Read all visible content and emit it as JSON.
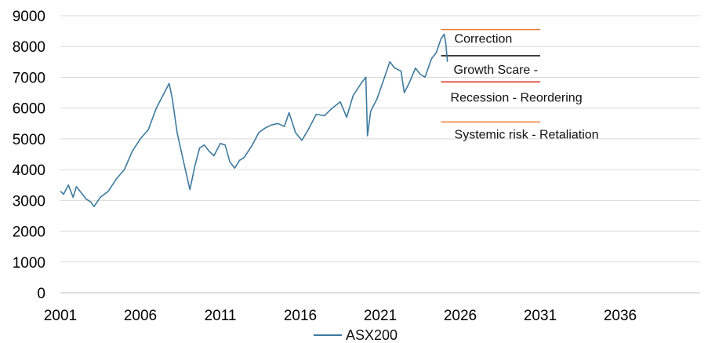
{
  "chart_data": {
    "type": "line",
    "title": "",
    "xlabel": "",
    "ylabel": "",
    "xlim": [
      2001,
      2041
    ],
    "ylim": [
      0,
      9000
    ],
    "x_ticks": [
      "2001",
      "2006",
      "2011",
      "2016",
      "2021",
      "2026",
      "2031",
      "2036"
    ],
    "y_ticks": [
      "0",
      "1000",
      "2000",
      "3000",
      "4000",
      "5000",
      "6000",
      "7000",
      "8000",
      "9000"
    ],
    "grid": "horizontal",
    "legend": "bottom",
    "colors": {
      "series": "#3d7a9e",
      "orange": "#ed7d31",
      "red": "#e0251b",
      "black": "#000000",
      "grid": "#d9d9d9"
    },
    "series": [
      {
        "name": "ASX200",
        "x": [
          2001.0,
          2001.2,
          2001.5,
          2001.8,
          2002.0,
          2002.3,
          2002.6,
          2002.9,
          2003.1,
          2003.5,
          2004.0,
          2004.5,
          2005.0,
          2005.5,
          2006.0,
          2006.5,
          2007.0,
          2007.5,
          2007.8,
          2008.0,
          2008.3,
          2008.6,
          2008.9,
          2009.1,
          2009.4,
          2009.7,
          2010.0,
          2010.3,
          2010.6,
          2011.0,
          2011.3,
          2011.6,
          2011.9,
          2012.2,
          2012.5,
          2013.0,
          2013.4,
          2013.8,
          2014.2,
          2014.6,
          2015.0,
          2015.3,
          2015.7,
          2016.1,
          2016.5,
          2017.0,
          2017.5,
          2018.0,
          2018.5,
          2018.9,
          2019.3,
          2019.8,
          2020.1,
          2020.2,
          2020.4,
          2020.8,
          2021.2,
          2021.6,
          2021.9,
          2022.3,
          2022.5,
          2022.8,
          2023.2,
          2023.5,
          2023.8,
          2024.2,
          2024.5,
          2024.8,
          2025.0,
          2025.1,
          2025.2
        ],
        "values": [
          3300,
          3200,
          3500,
          3100,
          3450,
          3250,
          3050,
          2950,
          2800,
          3100,
          3300,
          3700,
          4000,
          4600,
          5000,
          5300,
          6000,
          6500,
          6800,
          6300,
          5200,
          4500,
          3800,
          3350,
          4100,
          4700,
          4800,
          4600,
          4450,
          4850,
          4800,
          4250,
          4050,
          4300,
          4400,
          4800,
          5200,
          5350,
          5450,
          5500,
          5400,
          5850,
          5200,
          4950,
          5300,
          5800,
          5750,
          6000,
          6200,
          5700,
          6400,
          6800,
          7000,
          5100,
          5900,
          6300,
          6900,
          7500,
          7300,
          7200,
          6500,
          6800,
          7300,
          7100,
          7000,
          7600,
          7800,
          8250,
          8400,
          8100,
          7500
        ]
      }
    ],
    "annotations": [
      {
        "text": "Correction",
        "line_value": 8550,
        "line_from": 2024.8,
        "line_to": 2031.0,
        "color": "#ed7d31"
      },
      {
        "text": "Growth Scare -",
        "line_value": 7700,
        "line_from": 2024.8,
        "line_to": 2031.0,
        "color": "#000000"
      },
      {
        "text": "Recession - Reordering",
        "line_value": 6850,
        "line_from": 2024.8,
        "line_to": 2031.0,
        "color": "#e0251b"
      },
      {
        "text": "Systemic risk - Retaliation",
        "line_value": 5550,
        "line_from": 2024.8,
        "line_to": 2031.0,
        "color": "#ed7d31"
      }
    ]
  }
}
